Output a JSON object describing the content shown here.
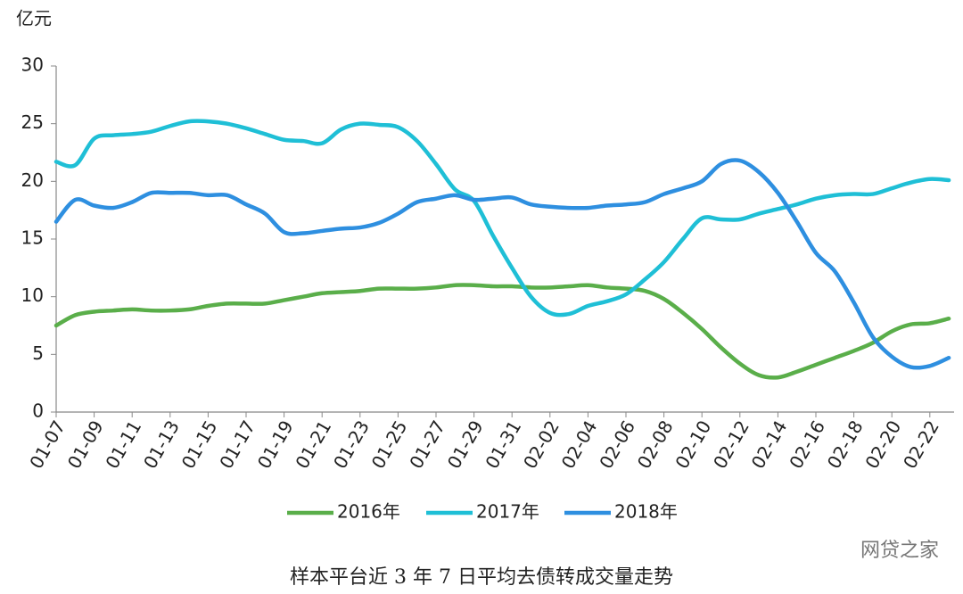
{
  "chart_data": {
    "type": "line",
    "title": "样本平台近 3 年 7 日平均去债转成交量走势",
    "y_label": "亿元",
    "watermark": "网贷之家",
    "categories": [
      "01-07",
      null,
      "01-09",
      null,
      "01-11",
      null,
      "01-13",
      null,
      "01-15",
      null,
      "01-17",
      null,
      "01-19",
      null,
      "01-21",
      null,
      "01-23",
      null,
      "01-25",
      null,
      "01-27",
      null,
      "01-29",
      null,
      "01-31",
      null,
      "02-02",
      null,
      "02-04",
      null,
      "02-06",
      null,
      "02-08",
      null,
      "02-10",
      null,
      "02-12",
      null,
      "02-14",
      null,
      "02-16",
      null,
      "02-18",
      null,
      "02-20",
      null,
      "02-22",
      null
    ],
    "series": [
      {
        "name": "2016年",
        "color": "#5aae4a",
        "values": [
          7.5,
          8.4,
          8.7,
          8.8,
          8.9,
          8.8,
          8.8,
          8.9,
          9.2,
          9.4,
          9.4,
          9.4,
          9.7,
          10.0,
          10.3,
          10.4,
          10.5,
          10.7,
          10.7,
          10.7,
          10.8,
          11.0,
          11.0,
          10.9,
          10.9,
          10.8,
          10.8,
          10.9,
          11.0,
          10.8,
          10.7,
          10.5,
          9.8,
          8.6,
          7.2,
          5.6,
          4.2,
          3.2,
          3.0,
          3.5,
          4.1,
          4.7,
          5.3,
          6.0,
          7.0,
          7.6,
          7.7,
          8.1
        ]
      },
      {
        "name": "2017年",
        "color": "#1fbfd6",
        "values": [
          21.7,
          21.4,
          23.7,
          24.0,
          24.1,
          24.3,
          24.8,
          25.2,
          25.2,
          25.0,
          24.6,
          24.1,
          23.6,
          23.5,
          23.3,
          24.5,
          25.0,
          24.9,
          24.7,
          23.5,
          21.5,
          19.3,
          18.3,
          15.3,
          12.5,
          10.0,
          8.6,
          8.5,
          9.2,
          9.6,
          10.2,
          11.5,
          13.0,
          15.0,
          16.8,
          16.7,
          16.7,
          17.2,
          17.6,
          18.0,
          18.5,
          18.8,
          18.9,
          18.9,
          19.4,
          19.9,
          20.2,
          20.1
        ]
      },
      {
        "name": "2018年",
        "color": "#2e8fe0",
        "values": [
          16.5,
          18.4,
          17.9,
          17.7,
          18.2,
          19.0,
          19.0,
          19.0,
          18.8,
          18.8,
          18.0,
          17.2,
          15.6,
          15.5,
          15.7,
          15.9,
          16.0,
          16.4,
          17.2,
          18.2,
          18.5,
          18.8,
          18.4,
          18.5,
          18.6,
          18.0,
          17.8,
          17.7,
          17.7,
          17.9,
          18.0,
          18.2,
          18.9,
          19.4,
          20.0,
          21.5,
          21.8,
          20.8,
          19.0,
          16.5,
          13.8,
          12.2,
          9.5,
          6.5,
          4.8,
          3.9,
          4.0,
          4.7
        ]
      }
    ],
    "ylim": [
      0,
      30
    ],
    "yticks": [
      0,
      5,
      10,
      15,
      20,
      25,
      30
    ],
    "grid": false,
    "legend": "bottom"
  }
}
